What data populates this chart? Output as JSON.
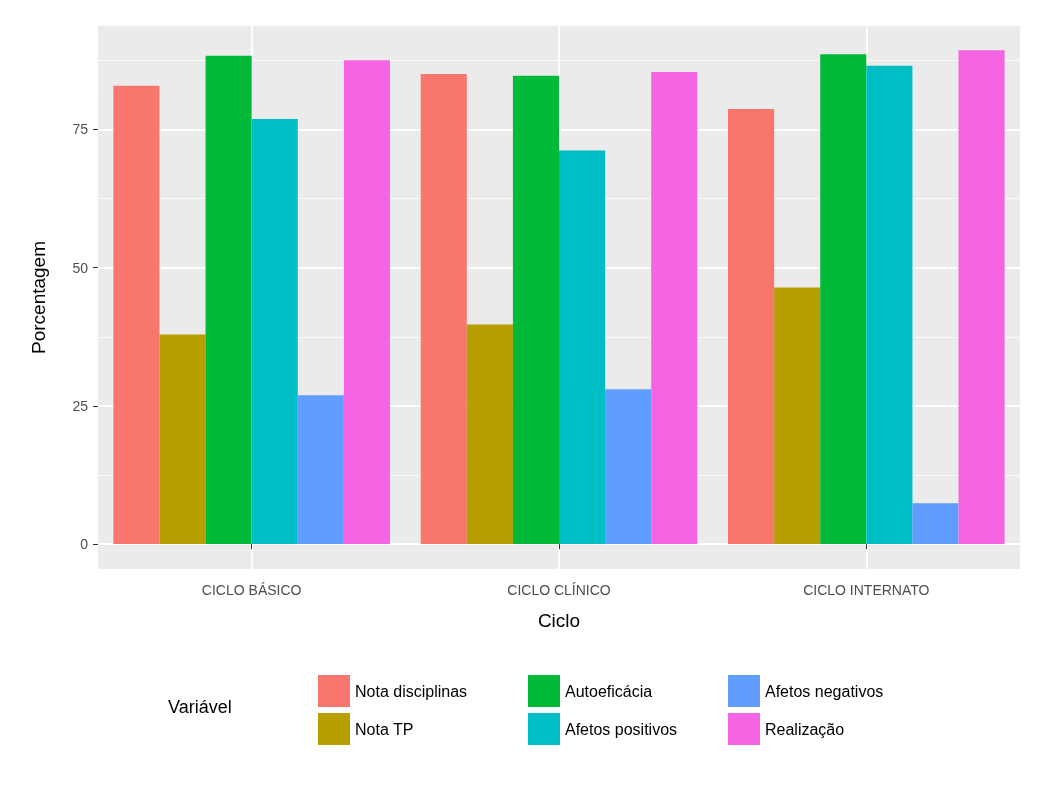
{
  "chart_data": {
    "type": "bar",
    "xlabel": "Ciclo",
    "ylabel": "Porcentagem",
    "legend_title": "Variável",
    "categories": [
      "CICLO BÁSICO",
      "CICLO CLÍNICO",
      "CICLO INTERNATO"
    ],
    "series": [
      {
        "name": "Nota disciplinas",
        "color": "#f8766d",
        "values": [
          82.9,
          85.0,
          78.7
        ]
      },
      {
        "name": "Nota TP",
        "color": "#b79f00",
        "values": [
          37.9,
          39.7,
          46.4
        ]
      },
      {
        "name": "Autoeficácia",
        "color": "#00ba38",
        "values": [
          88.3,
          84.7,
          88.6
        ]
      },
      {
        "name": "Afetos positivos",
        "color": "#00bfc4",
        "values": [
          76.9,
          71.2,
          86.5
        ]
      },
      {
        "name": "Afetos negativos",
        "color": "#619cff",
        "values": [
          26.9,
          28.0,
          7.4
        ]
      },
      {
        "name": "Realização",
        "color": "#f564e3",
        "values": [
          87.5,
          85.4,
          89.3
        ]
      }
    ],
    "ylim": [
      -4.5,
      93.7
    ],
    "yticks": [
      0,
      25,
      50,
      75
    ],
    "grid": true,
    "legend": "bottom"
  }
}
